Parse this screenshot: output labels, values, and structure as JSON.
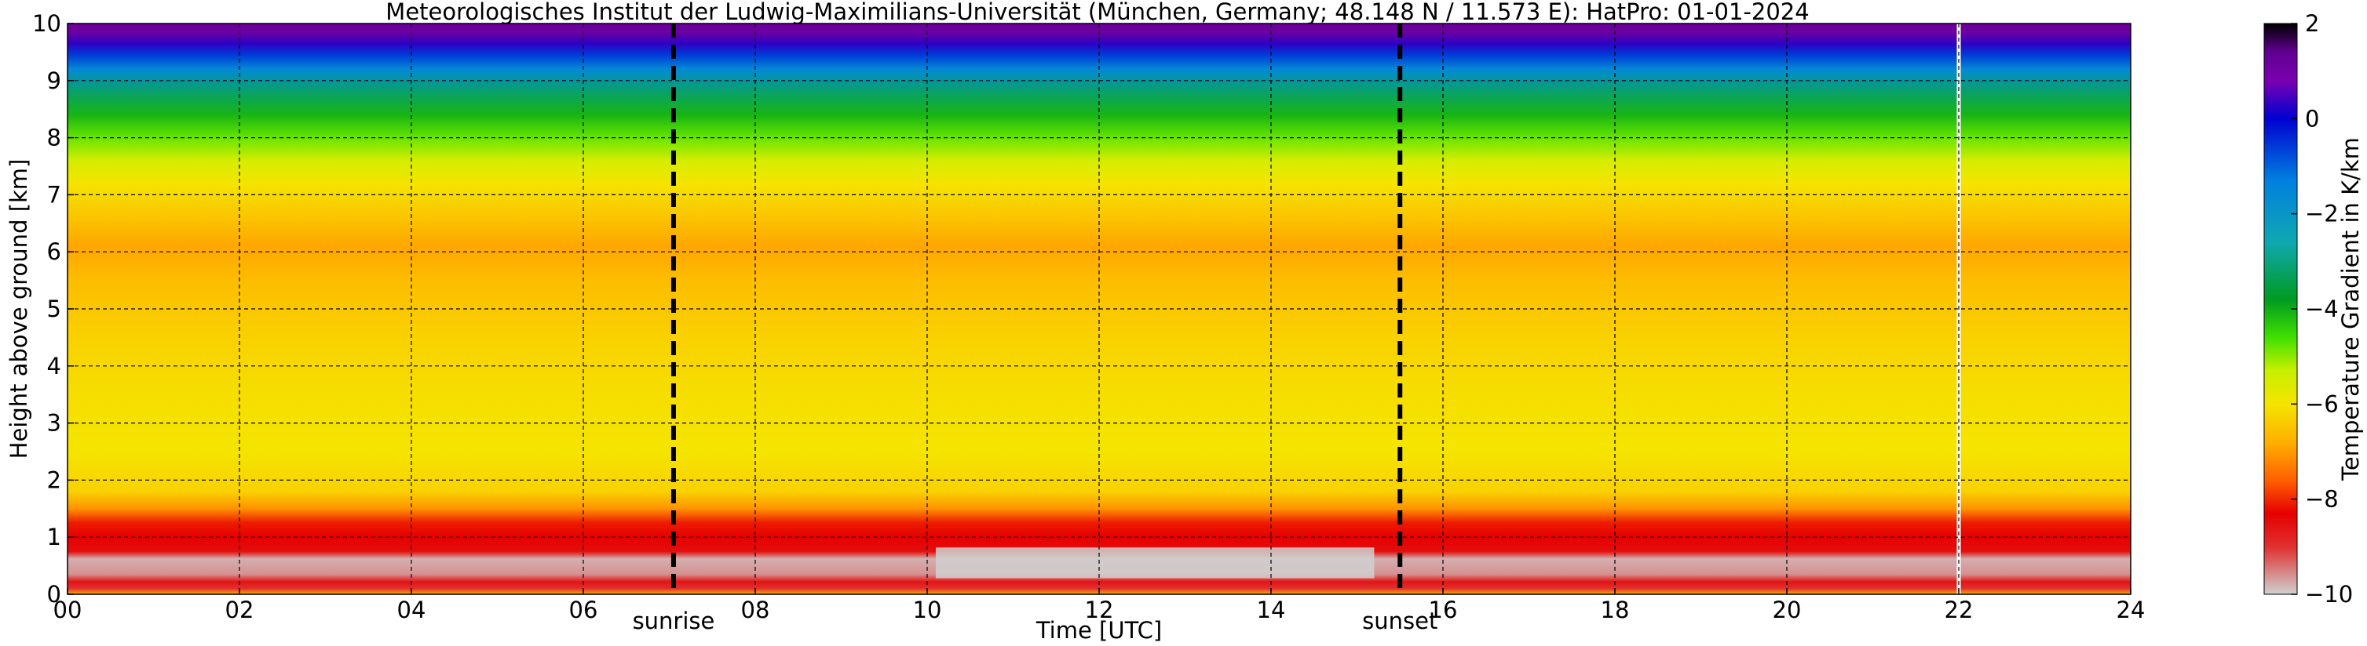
{
  "chart_data": {
    "type": "heatmap",
    "title": "Meteorologisches Institut der Ludwig-Maximilians-Universität (München, Germany; 48.148 N / 11.573 E):    HatPro: 01-01-2024",
    "xlabel": "Time [UTC]",
    "ylabel": "Height above ground [km]",
    "xlim": [
      0,
      24
    ],
    "ylim": [
      0,
      10
    ],
    "x_ticks": [
      "00",
      "02",
      "04",
      "06",
      "08",
      "10",
      "12",
      "14",
      "16",
      "18",
      "20",
      "22",
      "24"
    ],
    "y_ticks": [
      "0",
      "1",
      "2",
      "3",
      "4",
      "5",
      "6",
      "7",
      "8",
      "9",
      "10"
    ],
    "grid": true,
    "events": [
      {
        "label": "sunrise",
        "time_h": 7.05
      },
      {
        "label": "sunset",
        "time_h": 15.5
      }
    ],
    "data_end_h": 22.0,
    "colorbar": {
      "label": "Temperature Gradient in K/km",
      "ticks": [
        "2",
        "0",
        "−2",
        "−4",
        "−6",
        "−8",
        "−10"
      ],
      "range": [
        -10,
        2
      ],
      "colors": [
        {
          "v": -10,
          "c": "#d0d0d0"
        },
        {
          "v": -9.0,
          "c": "#e03030"
        },
        {
          "v": -8.3,
          "c": "#e60000"
        },
        {
          "v": -7.6,
          "c": "#ff6000"
        },
        {
          "v": -6.8,
          "c": "#ffb000"
        },
        {
          "v": -6.0,
          "c": "#f5e400"
        },
        {
          "v": -5.3,
          "c": "#c8f000"
        },
        {
          "v": -4.6,
          "c": "#40e000"
        },
        {
          "v": -3.8,
          "c": "#009a20"
        },
        {
          "v": -2.6,
          "c": "#10a8b0"
        },
        {
          "v": -1.3,
          "c": "#0080e0"
        },
        {
          "v": 0.0,
          "c": "#0000d0"
        },
        {
          "v": 0.8,
          "c": "#7a00b0"
        },
        {
          "v": 1.4,
          "c": "#600090"
        },
        {
          "v": 2.0,
          "c": "#000000"
        }
      ]
    },
    "gradient_profile": [
      {
        "h": 0.0,
        "v": -6.8
      },
      {
        "h": 0.1,
        "v": -9.0
      },
      {
        "h": 0.22,
        "v": -8.6
      },
      {
        "h": 0.35,
        "v": -9.6
      },
      {
        "h": 0.62,
        "v": -9.8
      },
      {
        "h": 0.75,
        "v": -8.5
      },
      {
        "h": 1.0,
        "v": -8.3
      },
      {
        "h": 1.25,
        "v": -8.1
      },
      {
        "h": 1.5,
        "v": -7.1
      },
      {
        "h": 1.8,
        "v": -6.3
      },
      {
        "h": 2.5,
        "v": -6.0
      },
      {
        "h": 3.5,
        "v": -6.1
      },
      {
        "h": 4.5,
        "v": -6.3
      },
      {
        "h": 5.5,
        "v": -6.6
      },
      {
        "h": 6.1,
        "v": -6.9
      },
      {
        "h": 6.6,
        "v": -6.5
      },
      {
        "h": 7.2,
        "v": -6.0
      },
      {
        "h": 7.6,
        "v": -5.5
      },
      {
        "h": 8.0,
        "v": -4.8
      },
      {
        "h": 8.4,
        "v": -4.1
      },
      {
        "h": 8.8,
        "v": -3.2
      },
      {
        "h": 9.2,
        "v": -1.6
      },
      {
        "h": 9.45,
        "v": -0.6
      },
      {
        "h": 9.65,
        "v": 0.3
      },
      {
        "h": 9.85,
        "v": 1.1
      },
      {
        "h": 10.0,
        "v": 1.2
      }
    ]
  }
}
